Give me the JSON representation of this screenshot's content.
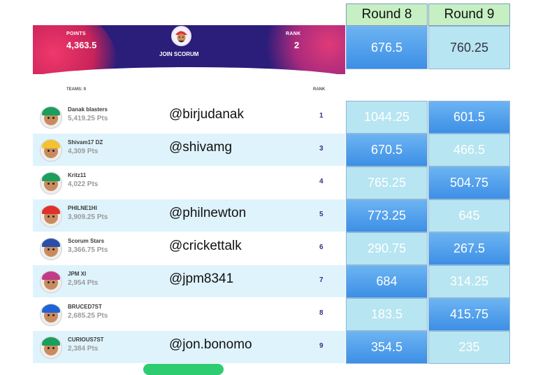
{
  "header": {
    "points_label": "POINTS",
    "points_value": "4,363.5",
    "join_label": "JOIN SCORUM",
    "rank_label": "RANK",
    "rank_value": "2"
  },
  "list": {
    "teams_label": "TEAMS: 9",
    "rank_label": "RANK"
  },
  "rounds": {
    "headers": [
      "Round 8",
      "Round 9"
    ],
    "top_row": [
      "676.5",
      "760.25"
    ]
  },
  "rows": [
    {
      "team": "Danak blasters",
      "pts": "5,419.25 Pts",
      "handle": "@birjudanak",
      "rank": "1",
      "r8": "1044.25",
      "r9": "601.5"
    },
    {
      "team": "Shivam17 DZ",
      "pts": "4,309 Pts",
      "handle": "@shivamg",
      "rank": "3",
      "r8": "670.5",
      "r9": "466.5"
    },
    {
      "team": "Kritz11",
      "pts": "4,022 Pts",
      "handle": "",
      "rank": "4",
      "r8": "765.25",
      "r9": "504.75"
    },
    {
      "team": "PHILNE1HI",
      "pts": "3,909.25 Pts",
      "handle": "@philnewton",
      "rank": "5",
      "r8": "773.25",
      "r9": "645"
    },
    {
      "team": "Scorum Stars",
      "pts": "3,366.75 Pts",
      "handle": "@crickettalk",
      "rank": "6",
      "r8": "290.75",
      "r9": "267.5"
    },
    {
      "team": "JPM XI",
      "pts": "2,954 Pts",
      "handle": "@jpm8341",
      "rank": "7",
      "r8": "684",
      "r9": "314.25"
    },
    {
      "team": "BRUCED7ST",
      "pts": "2,685.25 Pts",
      "handle": "",
      "rank": "8",
      "r8": "183.5",
      "r9": "415.75"
    },
    {
      "team": "CURIOUS7ST",
      "pts": "2,384 Pts",
      "handle": "@jon.bonomo",
      "rank": "9",
      "r8": "354.5",
      "r9": "235"
    }
  ],
  "colors": {
    "banner": "#2b1d7a",
    "accent_pink": "#f0386b",
    "row_alt": "#dff3fc",
    "round_header": "#c6f0c3",
    "cell_light": "#b7e5f1",
    "cell_dark": "#3d8fe6",
    "rank_text": "#3b2d86"
  }
}
